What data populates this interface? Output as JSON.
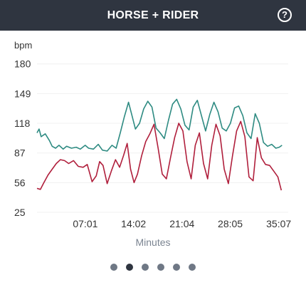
{
  "header": {
    "title": "HORSE + RIDER",
    "help_label": "?"
  },
  "chart_data": {
    "type": "line",
    "xlabel": "Minutes",
    "ylabel": "bpm",
    "ylim": [
      25,
      185
    ],
    "xlim": [
      0,
      36.5
    ],
    "yticks": [
      "180",
      "149",
      "118",
      "87",
      "56",
      "25"
    ],
    "ytick_values": [
      180,
      149,
      118,
      87,
      56,
      25
    ],
    "xticks": [
      "07:01",
      "14:02",
      "21:04",
      "28:05",
      "35:07"
    ],
    "xtick_values": [
      7.02,
      14.03,
      21.07,
      28.08,
      35.12
    ],
    "grid": true,
    "legend": "none",
    "series": [
      {
        "color": "#2e8b82",
        "x": [
          0,
          0.3,
          0.6,
          1.2,
          1.8,
          2.2,
          2.7,
          3.2,
          3.8,
          4.3,
          5,
          5.7,
          6.3,
          7,
          7.5,
          8.2,
          8.9,
          9.5,
          10.2,
          10.9,
          11.5,
          12.1,
          12.7,
          13.3,
          13.8,
          14.3,
          14.9,
          15.5,
          16.1,
          16.7,
          17.3,
          17.9,
          18.5,
          19.1,
          19.7,
          20.3,
          20.9,
          21.5,
          22.1,
          22.7,
          23.3,
          23.9,
          24.5,
          25.1,
          25.7,
          26.3,
          26.9,
          27.5,
          28.1,
          28.7,
          29.3,
          29.9,
          30.5,
          31.1,
          31.7,
          32.3,
          32.9,
          33.5,
          34.1,
          34.7,
          35.2,
          35.6
        ],
        "y": [
          108,
          112,
          104,
          107,
          100,
          94,
          92,
          95,
          91,
          94,
          92,
          93,
          91,
          95,
          92,
          91,
          96,
          90,
          89,
          95,
          92,
          108,
          125,
          140,
          126,
          112,
          118,
          133,
          141,
          135,
          113,
          108,
          102,
          121,
          138,
          143,
          133,
          116,
          111,
          135,
          142,
          126,
          110,
          127,
          140,
          130,
          113,
          110,
          118,
          134,
          136,
          126,
          108,
          102,
          128,
          118,
          98,
          94,
          96,
          92,
          93,
          95
        ]
      },
      {
        "color": "#b01f3c",
        "x": [
          0,
          0.5,
          1,
          1.6,
          2.2,
          2.8,
          3.4,
          4,
          4.6,
          5.3,
          6,
          6.7,
          7.3,
          8,
          8.6,
          9.1,
          9.6,
          10.2,
          10.8,
          11.4,
          12,
          12.6,
          13.1,
          13.6,
          14.1,
          14.6,
          15.2,
          15.8,
          16.4,
          17,
          17.6,
          18.2,
          18.8,
          19.4,
          20,
          20.6,
          21.2,
          21.8,
          22.4,
          23,
          23.6,
          24.2,
          24.8,
          25.4,
          26,
          26.6,
          27.2,
          27.8,
          28.4,
          29,
          29.6,
          30.2,
          30.8,
          31.4,
          32,
          32.6,
          33.2,
          33.8,
          34.4,
          35,
          35.5
        ],
        "y": [
          50,
          49,
          56,
          64,
          70,
          76,
          80,
          79,
          76,
          79,
          73,
          72,
          75,
          57,
          63,
          78,
          74,
          55,
          68,
          80,
          72,
          85,
          97,
          70,
          56,
          65,
          84,
          99,
          107,
          117,
          92,
          65,
          60,
          82,
          103,
          118,
          110,
          78,
          60,
          95,
          108,
          76,
          60,
          95,
          117,
          105,
          70,
          55,
          84,
          110,
          120,
          104,
          62,
          58,
          103,
          82,
          75,
          74,
          68,
          62,
          48
        ]
      }
    ]
  }
}
